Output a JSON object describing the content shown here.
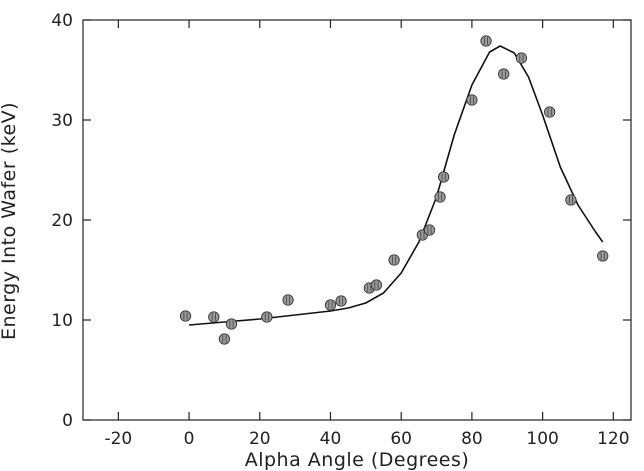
{
  "chart_data": {
    "type": "scatter",
    "title": "",
    "xlabel": "Alpha Angle (Degrees)",
    "ylabel": "Energy Into Wafer (keV)",
    "xlim": [
      -30,
      125
    ],
    "ylim": [
      0,
      40
    ],
    "xticks": [
      -20,
      0,
      20,
      40,
      60,
      80,
      100,
      120
    ],
    "yticks": [
      0,
      10,
      20,
      30,
      40
    ],
    "grid": false,
    "legend": "none",
    "marker_color": "#9a9a9a",
    "line_color": "#111111",
    "series": [
      {
        "type": "scatter",
        "x": [
          -1,
          7,
          10,
          12,
          22,
          28,
          40,
          43,
          51,
          53,
          58,
          66,
          68,
          71,
          72,
          80,
          84,
          89,
          94,
          102,
          108,
          117
        ],
        "y": [
          10.4,
          10.3,
          8.1,
          9.6,
          10.3,
          12.0,
          11.5,
          11.9,
          13.2,
          13.5,
          16.0,
          18.5,
          19.0,
          22.3,
          24.3,
          32.0,
          37.9,
          34.6,
          36.2,
          30.8,
          22.0,
          16.4
        ]
      },
      {
        "type": "line",
        "x": [
          0,
          10,
          20,
          30,
          40,
          45,
          50,
          55,
          60,
          65,
          70,
          75,
          80,
          85,
          88,
          92,
          96,
          100,
          105,
          110,
          115,
          117
        ],
        "y": [
          9.5,
          9.8,
          10.1,
          10.5,
          10.9,
          11.2,
          11.7,
          12.7,
          14.7,
          17.8,
          22.3,
          28.5,
          33.5,
          36.8,
          37.4,
          36.7,
          34.3,
          30.5,
          25.3,
          21.5,
          18.8,
          17.8
        ]
      }
    ]
  }
}
